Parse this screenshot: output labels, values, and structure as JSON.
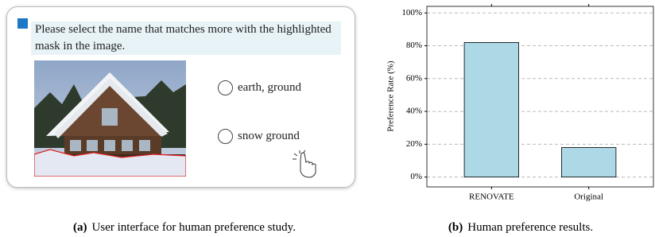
{
  "ui": {
    "question": "Please select the name that matches more with the highlighted mask in the image.",
    "options": [
      "earth, ground",
      "snow ground"
    ]
  },
  "chart_data": {
    "type": "bar",
    "ylabel": "Preference Rate (%)",
    "categories": [
      "RENOVATE",
      "Original"
    ],
    "values": [
      82,
      18
    ],
    "color": "#add8e6",
    "ylim": [
      -6,
      104
    ],
    "yticks": [
      {
        "value": 0,
        "label": "0%"
      },
      {
        "value": 20,
        "label": "20%"
      },
      {
        "value": 40,
        "label": "40%"
      },
      {
        "value": 60,
        "label": "60%"
      },
      {
        "value": 80,
        "label": "80%"
      },
      {
        "value": 100,
        "label": "100%"
      }
    ],
    "grid": true
  },
  "captions": [
    {
      "label": "(a)",
      "text": "User interface for human preference study."
    },
    {
      "label": "(b)",
      "text": "Human preference results."
    }
  ]
}
